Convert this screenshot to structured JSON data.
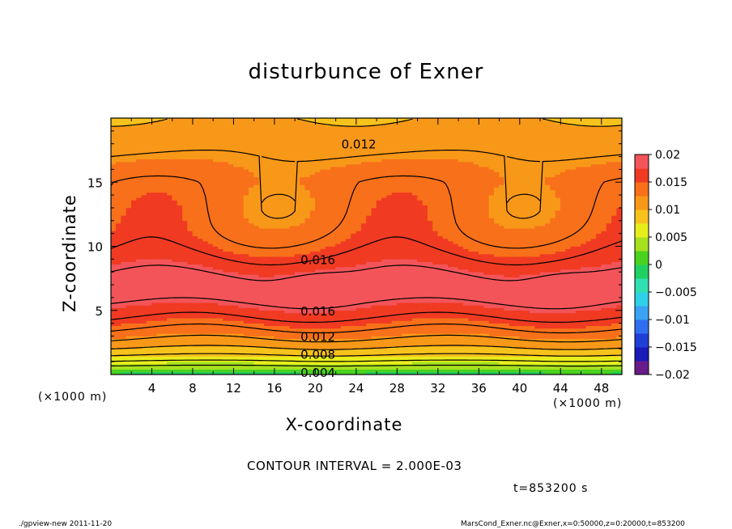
{
  "chart_data": {
    "type": "heatmap",
    "title": "disturbunce of Exner",
    "xlabel": "X-coordinate",
    "ylabel": "Z-coordinate",
    "x_unit_label": "(×1000 m)",
    "xlim": [
      0,
      50
    ],
    "ylim": [
      0,
      20
    ],
    "x_ticks": [
      4,
      8,
      12,
      16,
      20,
      24,
      28,
      32,
      36,
      40,
      44,
      48
    ],
    "y_ticks": [
      5,
      10,
      15
    ],
    "colorbar": {
      "range": [
        -0.02,
        0.02
      ],
      "tick_labels": [
        "0.02",
        "0.015",
        "0.01",
        "0.005",
        "0",
        "−0.005",
        "−0.01",
        "−0.015",
        "−0.02"
      ],
      "tick_values": [
        0.02,
        0.015,
        0.01,
        0.005,
        0,
        -0.005,
        -0.01,
        -0.015,
        -0.02
      ]
    },
    "contour_interval_label": "CONTOUR INTERVAL = 2.000E-03",
    "contour_labels": [
      {
        "text": "0.012",
        "x": 22,
        "z": 18.0
      },
      {
        "text": "0.016",
        "x": 18,
        "z": 9.0
      },
      {
        "text": "0.016",
        "x": 18,
        "z": 5.0
      },
      {
        "text": "0.012",
        "x": 18,
        "z": 3.0
      },
      {
        "text": "0.008",
        "x": 18,
        "z": 1.6
      },
      {
        "text": "0.004",
        "x": 18,
        "z": 0.2
      }
    ],
    "time_label": "t=853200 s",
    "field_description_values": {
      "max_approx": 0.0195,
      "min_approx": 0.002,
      "high_cores": [
        {
          "x": 20,
          "z": 6.8
        },
        {
          "x": 44,
          "z": 6.8
        }
      ]
    }
  },
  "footer": {
    "left": "./gpview-new   2011-11-20",
    "right": "MarsCond_Exner.nc@Exner,x=0:50000,z=0:20000,t=853200"
  },
  "colors": {
    "background": "#ffffff",
    "axis": "#000000",
    "contour_line": "#000000"
  }
}
